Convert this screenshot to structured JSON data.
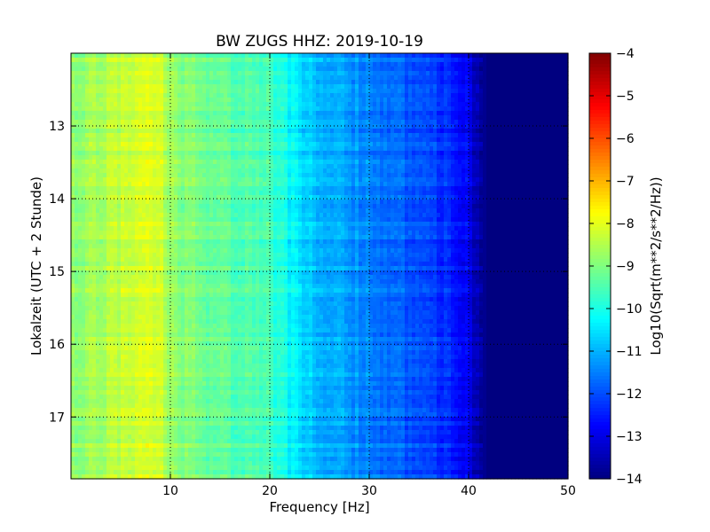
{
  "chart_data": {
    "type": "heatmap",
    "title": "BW ZUGS HHZ: 2019-10-19",
    "xlabel": "Frequency [Hz]",
    "ylabel": "Lokalzeit (UTC + 2 Stunde)",
    "colorbar_label": "Log10(Sqrt(m**2/s**2/Hz))",
    "colormap": "jet",
    "xlim": [
      0,
      50
    ],
    "ylim": [
      17.85,
      12.0
    ],
    "y_inverted": true,
    "clim": [
      -14,
      -4
    ],
    "grid": true,
    "x_ticks": [
      10,
      20,
      30,
      40,
      50
    ],
    "x_tick_labels": [
      "10",
      "20",
      "30",
      "40",
      "50"
    ],
    "y_ticks": [
      13,
      14,
      15,
      16,
      17
    ],
    "y_tick_labels": [
      "13",
      "14",
      "15",
      "16",
      "17"
    ],
    "colorbar_ticks": [
      -4,
      -5,
      -6,
      -7,
      -8,
      -9,
      -10,
      -11,
      -12,
      -13,
      -14
    ],
    "colorbar_tick_labels": [
      "−4",
      "−5",
      "−6",
      "−7",
      "−8",
      "−9",
      "−10",
      "−11",
      "−12",
      "−13",
      "−14"
    ],
    "spectrum_profile": {
      "frequency_hz": [
        0,
        2,
        5,
        7,
        9,
        10,
        15,
        20,
        22,
        25,
        30,
        35,
        38,
        40,
        41,
        42,
        50
      ],
      "level": [
        -8.9,
        -8.7,
        -8.4,
        -8.2,
        -8.2,
        -8.8,
        -9.3,
        -9.6,
        -10.3,
        -10.9,
        -11.5,
        -12.0,
        -12.4,
        -12.9,
        -13.6,
        -14.0,
        -14.0
      ]
    }
  }
}
